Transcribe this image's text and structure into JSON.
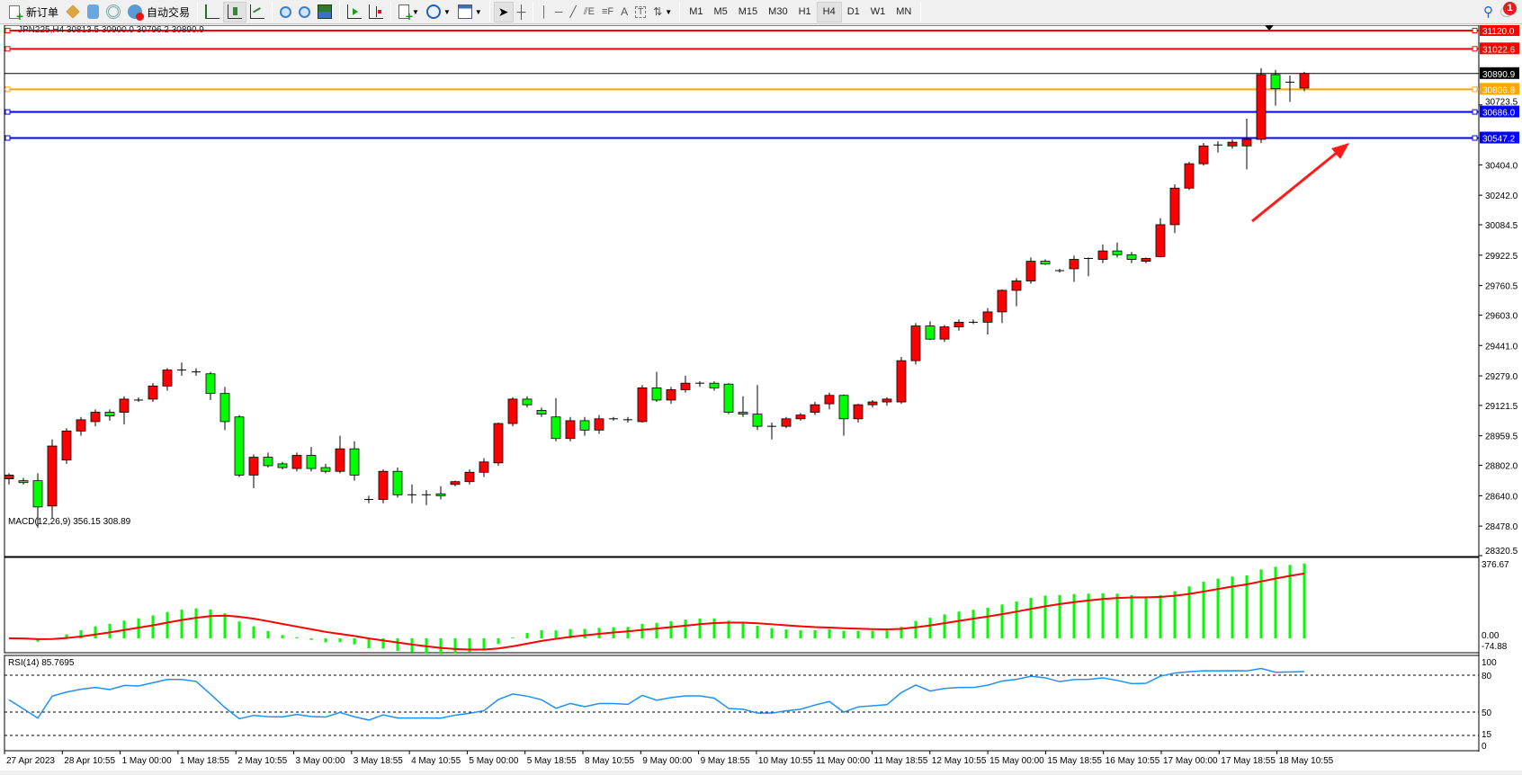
{
  "toolbar": {
    "new_order_label": "新订单",
    "auto_trading_label": "自动交易",
    "timeframes": [
      "M1",
      "M5",
      "M15",
      "M30",
      "H1",
      "H4",
      "D1",
      "W1",
      "MN"
    ],
    "active_timeframe": "H4",
    "notification_count": "1"
  },
  "chart": {
    "info_label": "JPN225,H4  30813.5 30900.0 30796.2 30890.9",
    "symbol": "JPN225",
    "timeframe": "H4",
    "bull_color": "#ff0000",
    "bear_color": "#00ff00",
    "price_ticks": [
      "30723.5",
      "30404.0",
      "30242.0",
      "30084.5",
      "29922.5",
      "29760.5",
      "29603.0",
      "29441.0",
      "29279.0",
      "29121.5",
      "28959.5",
      "28802.0",
      "28640.0",
      "28478.0",
      "28320.5"
    ],
    "horizontal_lines": [
      {
        "price": 31120.0,
        "label": "31120.0",
        "color": "#ff0000"
      },
      {
        "price": 31022.6,
        "label": "31022.6",
        "color": "#ff0000"
      },
      {
        "price": 30890.9,
        "label": "30890.9",
        "color": "#000000"
      },
      {
        "price": 30806.8,
        "label": "30806.8",
        "color": "#ffa500"
      },
      {
        "price": 30686.0,
        "label": "30686.0",
        "color": "#0000ff"
      },
      {
        "price": 30547.2,
        "label": "30547.2",
        "color": "#0000ff"
      }
    ],
    "annotation_arrow_color": "#ff1a1a",
    "time_labels": [
      "27 Apr 2023",
      "28 Apr 10:55",
      "1 May 00:00",
      "1 May 18:55",
      "2 May 10:55",
      "3 May 00:00",
      "3 May 18:55",
      "4 May 10:55",
      "5 May 00:00",
      "5 May 18:55",
      "8 May 10:55",
      "9 May 00:00",
      "9 May 18:55",
      "10 May 10:55",
      "11 May 00:00",
      "11 May 18:55",
      "12 May 10:55",
      "15 May 00:00",
      "15 May 18:55",
      "16 May 10:55",
      "17 May 00:00",
      "17 May 18:55",
      "18 May 10:55"
    ]
  },
  "chart_data": {
    "type": "candlestick",
    "ohlc_format": [
      "open",
      "high",
      "low",
      "close"
    ],
    "ylim": [
      28320.5,
      31120.0
    ],
    "candles": [
      [
        28730,
        28760,
        28700,
        28750
      ],
      [
        28720,
        28735,
        28700,
        28710
      ],
      [
        28720,
        28760,
        28470,
        28580
      ],
      [
        28585,
        28940,
        28520,
        28905
      ],
      [
        28830,
        29000,
        28810,
        28985
      ],
      [
        28985,
        29060,
        28960,
        29045
      ],
      [
        29035,
        29100,
        29010,
        29085
      ],
      [
        29085,
        29100,
        29040,
        29065
      ],
      [
        29085,
        29170,
        29020,
        29155
      ],
      [
        29150,
        29165,
        29140,
        29150
      ],
      [
        29155,
        29240,
        29140,
        29225
      ],
      [
        29225,
        29320,
        29200,
        29310
      ],
      [
        29310,
        29350,
        29280,
        29310
      ],
      [
        29300,
        29320,
        29280,
        29295
      ],
      [
        29290,
        29300,
        29150,
        29185
      ],
      [
        29185,
        29220,
        28990,
        29035
      ],
      [
        29060,
        29070,
        28740,
        28750
      ],
      [
        28750,
        28860,
        28680,
        28845
      ],
      [
        28845,
        28870,
        28790,
        28800
      ],
      [
        28810,
        28820,
        28780,
        28790
      ],
      [
        28785,
        28870,
        28770,
        28855
      ],
      [
        28855,
        28900,
        28770,
        28785
      ],
      [
        28790,
        28810,
        28760,
        28770
      ],
      [
        28770,
        28960,
        28760,
        28890
      ],
      [
        28890,
        28930,
        28720,
        28750
      ],
      [
        28620,
        28640,
        28600,
        28620
      ],
      [
        28620,
        28780,
        28600,
        28770
      ],
      [
        28770,
        28790,
        28630,
        28645
      ],
      [
        28645,
        28700,
        28600,
        28645
      ],
      [
        28645,
        28670,
        28590,
        28645
      ],
      [
        28650,
        28690,
        28620,
        28640
      ],
      [
        28700,
        28720,
        28690,
        28715
      ],
      [
        28715,
        28780,
        28700,
        28765
      ],
      [
        28765,
        28840,
        28740,
        28820
      ],
      [
        28815,
        29030,
        28800,
        29025
      ],
      [
        29025,
        29165,
        29010,
        29155
      ],
      [
        29155,
        29170,
        29110,
        29125
      ],
      [
        29095,
        29110,
        29060,
        29075
      ],
      [
        29060,
        29160,
        28930,
        28945
      ],
      [
        28945,
        29060,
        28930,
        29040
      ],
      [
        29040,
        29060,
        28960,
        28990
      ],
      [
        28990,
        29070,
        28970,
        29050
      ],
      [
        29050,
        29060,
        29040,
        29050
      ],
      [
        29045,
        29060,
        29030,
        29040
      ],
      [
        29035,
        29230,
        29030,
        29215
      ],
      [
        29215,
        29300,
        29140,
        29150
      ],
      [
        29150,
        29220,
        29130,
        29205
      ],
      [
        29205,
        29280,
        29190,
        29240
      ],
      [
        29240,
        29250,
        29220,
        29240
      ],
      [
        29240,
        29250,
        29200,
        29215
      ],
      [
        29235,
        29240,
        29075,
        29085
      ],
      [
        29085,
        29170,
        29060,
        29075
      ],
      [
        29075,
        29230,
        28990,
        29010
      ],
      [
        29010,
        29030,
        28940,
        29010
      ],
      [
        29010,
        29060,
        29000,
        29050
      ],
      [
        29050,
        29080,
        29040,
        29070
      ],
      [
        29085,
        29140,
        29070,
        29125
      ],
      [
        29130,
        29190,
        29100,
        29175
      ],
      [
        29175,
        29180,
        28960,
        29050
      ],
      [
        29050,
        29130,
        29030,
        29125
      ],
      [
        29125,
        29150,
        29110,
        29140
      ],
      [
        29140,
        29165,
        29120,
        29155
      ],
      [
        29140,
        29380,
        29130,
        29360
      ],
      [
        29360,
        29560,
        29340,
        29545
      ],
      [
        29545,
        29570,
        29470,
        29475
      ],
      [
        29475,
        29550,
        29460,
        29540
      ],
      [
        29540,
        29580,
        29520,
        29565
      ],
      [
        29565,
        29580,
        29555,
        29565
      ],
      [
        29565,
        29640,
        29500,
        29620
      ],
      [
        29620,
        29740,
        29560,
        29735
      ],
      [
        29735,
        29800,
        29650,
        29785
      ],
      [
        29785,
        29910,
        29770,
        29890
      ],
      [
        29890,
        29900,
        29870,
        29875
      ],
      [
        29840,
        29850,
        29830,
        29840
      ],
      [
        29850,
        29920,
        29780,
        29900
      ],
      [
        29905,
        29910,
        29810,
        29905
      ],
      [
        29900,
        29980,
        29880,
        29945
      ],
      [
        29945,
        29990,
        29910,
        29925
      ],
      [
        29925,
        29940,
        29880,
        29900
      ],
      [
        29890,
        29910,
        29880,
        29905
      ],
      [
        29915,
        30120,
        29910,
        30085
      ],
      [
        30085,
        30300,
        30040,
        30280
      ],
      [
        30280,
        30420,
        30270,
        30410
      ],
      [
        30410,
        30520,
        30400,
        30505
      ],
      [
        30510,
        30530,
        30470,
        30510
      ],
      [
        30505,
        30540,
        30490,
        30525
      ],
      [
        30505,
        30650,
        30380,
        30540
      ],
      [
        30540,
        30920,
        30520,
        30885
      ],
      [
        30885,
        30910,
        30720,
        30810
      ],
      [
        30845,
        30880,
        30740,
        30845
      ],
      [
        30813.5,
        30900,
        30796.2,
        30890.9
      ]
    ],
    "macd": {
      "label": "MACD(12,26,9) 356.15 308.89",
      "main": 356.15,
      "signal": 308.89,
      "ticks": [
        "376.67",
        "0.00",
        "-74.88"
      ],
      "ylim": [
        -74.88,
        376.67
      ],
      "histogram_color": "#00ff00",
      "signal_color": "#ff0000"
    },
    "rsi": {
      "label": "RSI(14) 85.7695",
      "value": 85.7695,
      "ticks": [
        "100",
        "80",
        "50",
        "15",
        "0"
      ],
      "levels": [
        80,
        50,
        15
      ],
      "line_color": "#1e90ff"
    }
  }
}
